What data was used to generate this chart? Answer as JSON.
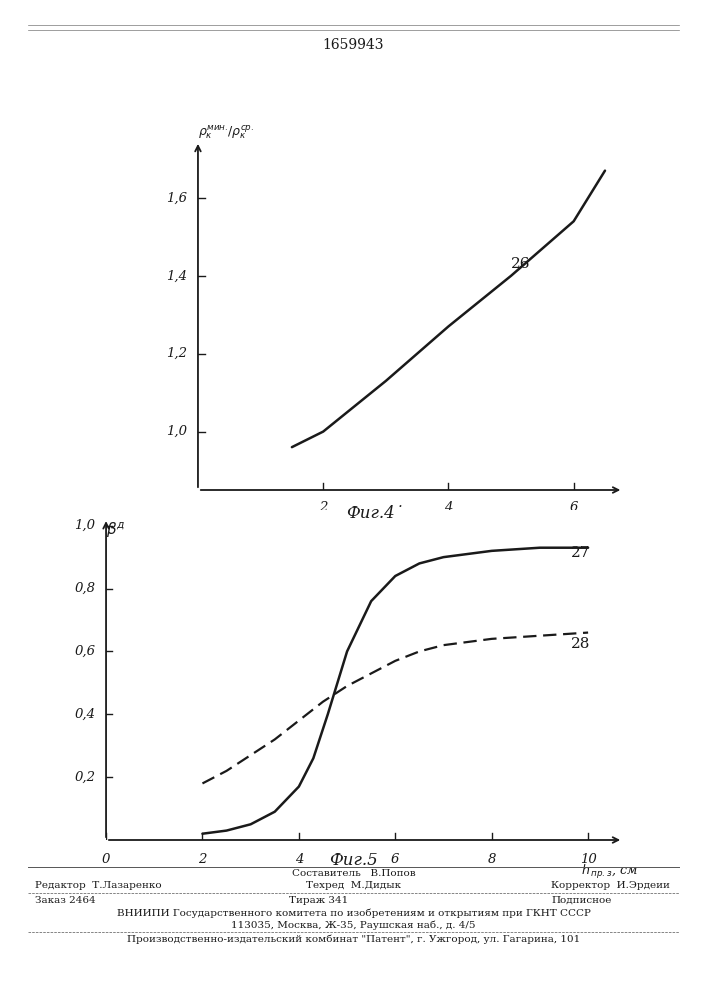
{
  "title": "1659943",
  "fig4_curve_label": "26",
  "fig4_x": [
    1.5,
    2.0,
    3.0,
    4.0,
    5.0,
    6.0,
    6.5
  ],
  "fig4_y": [
    0.96,
    1.0,
    1.13,
    1.27,
    1.4,
    1.54,
    1.67
  ],
  "fig4_xlim": [
    0,
    7
  ],
  "fig4_ylim": [
    0.85,
    1.8
  ],
  "fig4_xticks": [
    2,
    4,
    6
  ],
  "fig4_yticks": [
    1.0,
    1.2,
    1.4,
    1.6
  ],
  "fig5_curve27_x": [
    2.0,
    2.5,
    3.0,
    3.5,
    4.0,
    4.3,
    4.6,
    5.0,
    5.5,
    6.0,
    6.5,
    7.0,
    8.0,
    9.0,
    10.0
  ],
  "fig5_curve27_y": [
    0.02,
    0.03,
    0.05,
    0.09,
    0.17,
    0.26,
    0.4,
    0.6,
    0.76,
    0.84,
    0.88,
    0.9,
    0.92,
    0.93,
    0.93
  ],
  "fig5_curve28_x": [
    2.0,
    2.5,
    3.0,
    3.5,
    4.0,
    4.5,
    5.0,
    5.5,
    6.0,
    6.5,
    7.0,
    7.5,
    8.0,
    9.0,
    10.0
  ],
  "fig5_curve28_y": [
    0.18,
    0.22,
    0.27,
    0.32,
    0.38,
    0.44,
    0.49,
    0.53,
    0.57,
    0.6,
    0.62,
    0.63,
    0.64,
    0.65,
    0.66
  ],
  "fig5_xlim": [
    0,
    11
  ],
  "fig5_ylim": [
    0,
    1.05
  ],
  "fig5_xticks": [
    0,
    2,
    4,
    6,
    8,
    10
  ],
  "fig5_yticks": [
    0.2,
    0.4,
    0.6,
    0.8,
    1.0
  ],
  "fig5_curve27_label": "27",
  "fig5_curve28_label": "28",
  "fig4_caption": "Фиг.4",
  "fig5_caption": "Фиг.5",
  "footer_line1_left": "Редактор  Т.Лазаренко",
  "footer_line1_center": "Составитель   В.Попов",
  "footer_line2_center": "Техред  М.Дидык",
  "footer_line2_right": "Корректор  И.Эрдеии",
  "footer_line3_left": "Заказ 2464",
  "footer_line3_center": "Тираж 341",
  "footer_line3_right": "Подписное",
  "footer_line4": "ВНИИПИ Государственного комитета по изобретениям и открытиям при ГКНТ СССР",
  "footer_line5": "113035, Москва, Ж-35, Раушская наб., д. 4/5",
  "footer_line6": "Производственно-издательский комбинат \"Патент\", г. Ужгород, ул. Гагарина, 101",
  "bg_color": "#ffffff",
  "line_color": "#1a1a1a",
  "font_color": "#1a1a1a"
}
